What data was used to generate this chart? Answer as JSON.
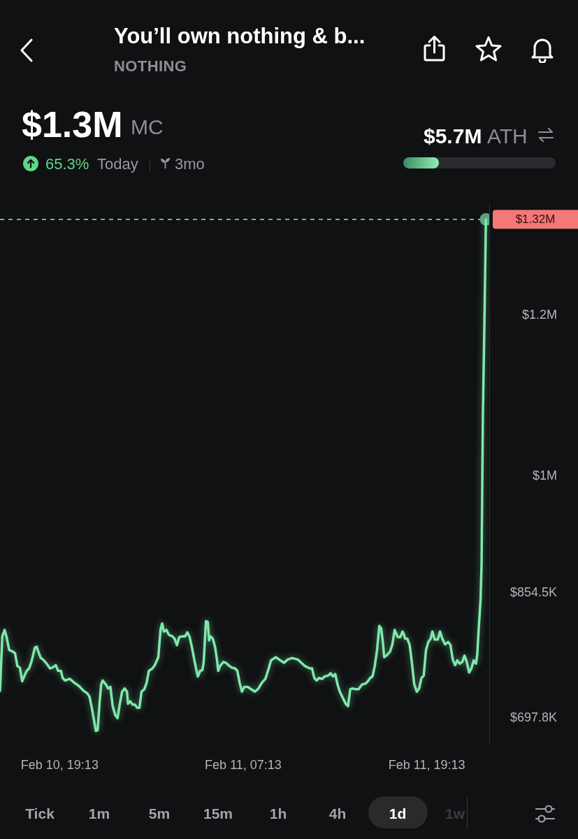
{
  "chart_data": {
    "type": "line",
    "title": "You’ll own nothing & b...",
    "subtitle": "NOTHING",
    "annotations": [
      "$1.3M",
      "MC",
      "65.3%",
      "Today",
      "3mo",
      "$5.7M",
      "ATH",
      "Tick",
      "1m",
      "5m",
      "15m",
      "1h",
      "4h",
      "1d",
      "1w"
    ],
    "xlim": [
      "--02-10T15:19",
      "--02-11T23:18"
    ],
    "xticks": [
      {
        "value": "--02-10T19:13",
        "label": "Feb 10, 19:13"
      },
      {
        "value": "--02-11T07:13",
        "label": "Feb 11, 07:13"
      },
      {
        "value": "--02-11T19:13",
        "label": "Feb 11, 19:13"
      }
    ],
    "ylim": [
      665000,
      1340000
    ],
    "yticks": [
      {
        "value": 697800,
        "label": "$697.8K"
      },
      {
        "value": 854500,
        "label": "$854.5K"
      },
      {
        "value": 1000000,
        "label": "$1M"
      },
      {
        "value": 1200000,
        "label": "$1.2M"
      }
    ],
    "grid": false,
    "legend": false,
    "marker": "none",
    "line_style": "solid",
    "ref_lines": [
      {
        "axis": "y",
        "value": 1320000,
        "label": "$1.32M",
        "color": "#8fe8b4",
        "line_style": "dashed"
      }
    ],
    "series": [
      {
        "color": "#80e8ab",
        "x": [
          "--02-10T15:19",
          "--02-10T15:28",
          "--02-10T15:37",
          "--02-10T15:44",
          "--02-10T15:55",
          "--02-10T16:09",
          "--02-10T16:18",
          "--02-10T16:27",
          "--02-10T16:37",
          "--02-10T16:46",
          "--02-10T16:55",
          "--02-10T17:04",
          "--02-10T17:13",
          "--02-10T17:22",
          "--02-10T17:36",
          "--02-10T17:43",
          "--02-10T17:49",
          "--02-10T17:59",
          "--02-10T18:08",
          "--02-10T18:22",
          "--02-10T18:35",
          "--02-10T18:44",
          "--02-10T18:58",
          "--02-10T19:07",
          "--02-10T19:18",
          "--02-10T19:25",
          "--02-10T19:34",
          "--02-10T19:53",
          "--02-10T20:11",
          "--02-10T20:29",
          "--02-10T20:47",
          "--02-10T21:01",
          "--02-10T21:10",
          "--02-10T21:19",
          "--02-10T21:29",
          "--02-10T21:35",
          "--02-10T21:42",
          "--02-10T21:50",
          "--02-10T21:56",
          "--02-10T22:02",
          "--02-10T22:14",
          "--02-10T22:23",
          "--02-10T22:32",
          "--02-10T22:41",
          "--02-10T22:51",
          "--02-10T23:00",
          "--02-10T23:09",
          "--02-10T23:18",
          "--02-10T23:28",
          "--02-10T23:37",
          "--02-10T23:41",
          "--02-10T23:50",
          "--02-10T23:59",
          "--02-11T00:08",
          "--02-11T00:17",
          "--02-11T00:26",
          "--02-11T00:34",
          "--02-11T00:45",
          "--02-11T00:54",
          "--02-11T01:03",
          "--02-11T01:17",
          "--02-11T01:26",
          "--02-11T01:40",
          "--02-11T01:49",
          "--02-11T01:55",
          "--02-11T02:02",
          "--02-11T02:12",
          "--02-11T02:21",
          "--02-11T02:35",
          "--02-11T02:44",
          "--02-11T02:53",
          "--02-11T03:02",
          "--02-11T03:11",
          "--02-11T03:25",
          "--02-11T03:34",
          "--02-11T03:43",
          "--02-11T03:52",
          "--02-11T04:01",
          "--02-11T04:10",
          "--02-11T04:15",
          "--02-11T04:24",
          "--02-11T04:33",
          "--02-11T04:38",
          "--02-11T04:43",
          "--02-11T04:47",
          "--02-11T04:54",
          "--02-11T04:59",
          "--02-11T05:05",
          "--02-11T05:14",
          "--02-11T05:23",
          "--02-11T05:30",
          "--02-11T05:35",
          "--02-11T05:42",
          "--02-11T05:55",
          "--02-11T06:05",
          "--02-11T06:19",
          "--02-11T06:28",
          "--02-11T06:41",
          "--02-11T06:50",
          "--02-11T06:59",
          "--02-11T07:08",
          "--02-11T07:17",
          "--02-11T07:31",
          "--02-11T07:40",
          "--02-11T07:59",
          "--02-11T08:13",
          "--02-11T08:26",
          "--02-11T08:40",
          "--02-11T08:53",
          "--02-11T09:02",
          "--02-11T09:21",
          "--02-11T09:39",
          "--02-11T09:53",
          "--02-11T10:07",
          "--02-11T10:25",
          "--02-11T10:47",
          "--02-11T11:01",
          "--02-11T11:15",
          "--02-11T11:34",
          "--02-11T11:43",
          "--02-11T11:52",
          "--02-11T12:01",
          "--02-11T12:10",
          "--02-11T12:23",
          "--02-11T12:32",
          "--02-11T12:46",
          "--02-11T12:56",
          "--02-11T13:05",
          "--02-11T13:14",
          "--02-11T13:23",
          "--02-11T13:32",
          "--02-11T13:41",
          "--02-11T13:55",
          "--02-11T14:04",
          "--02-11T14:13",
          "--02-11T14:22",
          "--02-11T14:36",
          "--02-11T14:45",
          "--02-11T14:59",
          "--02-11T15:13",
          "--02-11T15:22",
          "--02-11T15:31",
          "--02-11T15:40",
          "--02-11T15:49",
          "--02-11T15:58",
          "--02-11T16:07",
          "--02-11T16:14",
          "--02-11T16:21",
          "--02-11T16:26",
          "--02-11T16:35",
          "--02-11T16:49",
          "--02-11T16:58",
          "--02-11T17:07",
          "--02-11T17:11",
          "--02-11T17:19",
          "--02-11T17:29",
          "--02-11T17:38",
          "--02-11T17:43",
          "--02-11T17:48",
          "--02-11T17:57",
          "--02-11T18:06",
          "--02-11T18:15",
          "--02-11T18:24",
          "--02-11T18:34",
          "--02-11T18:43",
          "--02-11T18:52",
          "--02-11T19:01",
          "--02-11T19:10",
          "--02-11T19:19",
          "--02-11T19:28",
          "--02-11T19:35",
          "--02-11T19:44",
          "--02-11T19:56",
          "--02-11T20:05",
          "--02-11T20:14",
          "--02-11T20:25",
          "--02-11T20:37",
          "--02-11T20:46",
          "--02-11T20:55",
          "--02-11T21:04",
          "--02-11T21:13",
          "--02-11T21:22",
          "--02-11T21:32",
          "--02-11T21:41",
          "--02-11T21:50",
          "--02-11T21:59",
          "--02-11T22:08",
          "--02-11T22:17",
          "--02-11T22:26",
          "--02-11T22:31",
          "--02-11T22:35",
          "--02-11T22:40",
          "--02-11T22:44",
          "--02-11T22:48",
          "--02-11T22:53",
          "--02-11T23:00",
          "--02-11T23:05"
        ],
        "values": [
          732000,
          800000,
          808000,
          800000,
          783000,
          781000,
          779000,
          763000,
          761000,
          744000,
          751000,
          757000,
          760000,
          768000,
          786000,
          787000,
          781000,
          773000,
          771000,
          766000,
          760000,
          761000,
          764000,
          757000,
          757000,
          748000,
          745000,
          747000,
          742000,
          738000,
          732000,
          729000,
          725000,
          711000,
          693000,
          682000,
          683000,
          719000,
          740000,
          745000,
          740000,
          735000,
          737000,
          713000,
          702000,
          698000,
          716000,
          731000,
          735000,
          731000,
          716000,
          719000,
          715000,
          715000,
          711000,
          711000,
          731000,
          734000,
          742000,
          757000,
          760000,
          764000,
          774000,
          809000,
          816000,
          806000,
          808000,
          802000,
          800000,
          797000,
          789000,
          799000,
          800000,
          800000,
          805000,
          799000,
          786000,
          771000,
          757000,
          750000,
          757000,
          758000,
          768000,
          797000,
          819000,
          818000,
          795000,
          800000,
          797000,
          786000,
          771000,
          757000,
          763000,
          768000,
          767000,
          763000,
          761000,
          760000,
          757000,
          742000,
          731000,
          737000,
          737000,
          735000,
          731000,
          735000,
          742000,
          747000,
          760000,
          770000,
          774000,
          770000,
          767000,
          771000,
          773000,
          771000,
          767000,
          763000,
          760000,
          760000,
          748000,
          745000,
          748000,
          747000,
          750000,
          751000,
          754000,
          750000,
          753000,
          740000,
          731000,
          725000,
          716000,
          713000,
          734000,
          735000,
          734000,
          734000,
          740000,
          741000,
          744000,
          748000,
          750000,
          763000,
          783000,
          813000,
          810000,
          792000,
          774000,
          776000,
          781000,
          790000,
          808000,
          805000,
          799000,
          799000,
          806000,
          803000,
          797000,
          797000,
          789000,
          766000,
          740000,
          731000,
          735000,
          748000,
          751000,
          783000,
          793000,
          797000,
          806000,
          796000,
          796000,
          806000,
          797000,
          790000,
          793000,
          789000,
          771000,
          764000,
          770000,
          766000,
          768000,
          776000,
          768000,
          755000,
          760000,
          770000,
          766000,
          777000,
          800000,
          826000,
          846000,
          891000,
          1073000,
          1210000,
          1320000
        ]
      },
      {
        "type": "scatter",
        "color": "#5e9e7a",
        "marker": "circle",
        "x": [
          "--02-11T23:05"
        ],
        "values": [
          1320000
        ]
      }
    ]
  }
}
